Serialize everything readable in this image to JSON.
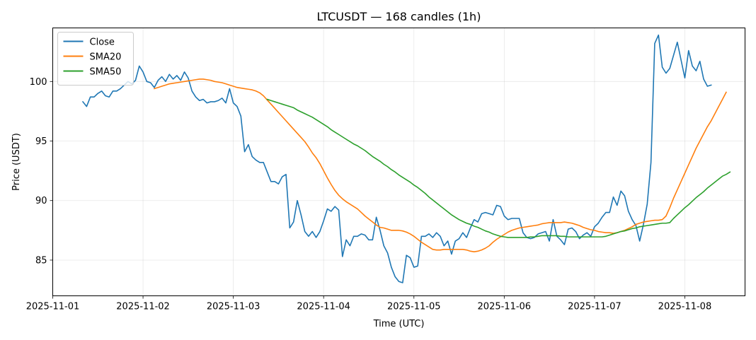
{
  "chart_data": {
    "type": "line",
    "title": "LTCUSDT — 168 candles (1h)",
    "xlabel": "Time (UTC)",
    "ylabel": "Price (USDT)",
    "x_ticks": [
      "2025-11-01",
      "2025-11-02",
      "2025-11-03",
      "2025-11-04",
      "2025-11-05",
      "2025-11-06",
      "2025-11-07",
      "2025-11-08"
    ],
    "y_ticks": [
      85,
      90,
      95,
      100
    ],
    "xlim": [
      "2025-11-01 00:00",
      "2025-11-08 16:00"
    ],
    "ylim": [
      82,
      104.5
    ],
    "grid": true,
    "legend_position": "top-left",
    "series": [
      {
        "name": "Close",
        "color": "#1f77b4",
        "start": "2025-11-01 08:00",
        "step_hours": 1,
        "values": [
          98.3,
          97.9,
          98.7,
          98.7,
          99.0,
          99.2,
          98.8,
          98.7,
          99.2,
          99.2,
          99.4,
          99.7,
          100.0,
          99.8,
          100.1,
          101.3,
          100.8,
          100.0,
          99.9,
          99.5,
          100.1,
          100.4,
          100.0,
          100.6,
          100.2,
          100.5,
          100.1,
          100.8,
          100.3,
          99.2,
          98.7,
          98.4,
          98.5,
          98.2,
          98.3,
          98.3,
          98.4,
          98.6,
          98.2,
          99.4,
          98.2,
          97.9,
          97.1,
          94.1,
          94.7,
          93.7,
          93.4,
          93.2,
          93.2,
          92.4,
          91.6,
          91.6,
          91.4,
          92.0,
          92.2,
          87.7,
          88.2,
          90.0,
          88.8,
          87.4,
          87.0,
          87.4,
          86.9,
          87.4,
          88.3,
          89.3,
          89.1,
          89.5,
          89.2,
          85.3,
          86.7,
          86.2,
          87.0,
          87.0,
          87.2,
          87.1,
          86.7,
          86.7,
          88.6,
          87.5,
          86.2,
          85.6,
          84.4,
          83.6,
          83.2,
          83.1,
          85.4,
          85.2,
          84.4,
          84.5,
          87.0,
          87.0,
          87.2,
          86.9,
          87.3,
          87.0,
          86.2,
          86.6,
          85.5,
          86.6,
          86.8,
          87.3,
          86.9,
          87.7,
          88.4,
          88.2,
          88.9,
          89.0,
          88.9,
          88.8,
          89.6,
          89.5,
          88.7,
          88.4,
          88.5,
          88.5,
          88.5,
          87.3,
          86.9,
          86.8,
          86.9,
          87.2,
          87.3,
          87.4,
          86.6,
          88.4,
          87.0,
          86.7,
          86.3,
          87.6,
          87.7,
          87.4,
          86.8,
          87.1,
          87.3,
          87.0,
          87.8,
          88.1,
          88.6,
          89.0,
          89.0,
          90.3,
          89.6,
          90.8,
          90.4,
          89.1,
          88.4,
          87.9,
          86.6,
          88.0,
          89.7,
          93.2,
          103.2,
          103.9,
          101.2,
          100.7,
          101.1,
          102.2,
          103.3,
          101.8,
          100.3,
          102.6,
          101.3,
          100.9,
          101.7,
          100.2,
          99.6,
          99.7
        ]
      },
      {
        "name": "SMA20",
        "color": "#ff7f0e",
        "start": "2025-11-02 03:00",
        "step_hours": 1,
        "values": [
          99.4,
          99.5,
          99.6,
          99.7,
          99.8,
          99.85,
          99.9,
          99.95,
          100.0,
          100.05,
          100.1,
          100.15,
          100.2,
          100.2,
          100.15,
          100.1,
          100.0,
          99.95,
          99.9,
          99.8,
          99.7,
          99.6,
          99.5,
          99.45,
          99.4,
          99.35,
          99.3,
          99.2,
          99.05,
          98.8,
          98.45,
          98.1,
          97.75,
          97.4,
          97.05,
          96.7,
          96.35,
          96.0,
          95.65,
          95.3,
          94.95,
          94.5,
          94.0,
          93.6,
          93.1,
          92.5,
          91.9,
          91.35,
          90.85,
          90.45,
          90.15,
          89.9,
          89.7,
          89.5,
          89.3,
          89.0,
          88.7,
          88.45,
          88.2,
          87.95,
          87.75,
          87.7,
          87.6,
          87.5,
          87.5,
          87.5,
          87.45,
          87.35,
          87.2,
          87.0,
          86.75,
          86.5,
          86.3,
          86.1,
          85.9,
          85.85,
          85.85,
          85.9,
          85.9,
          85.9,
          85.9,
          85.9,
          85.9,
          85.85,
          85.75,
          85.7,
          85.75,
          85.85,
          86.0,
          86.2,
          86.5,
          86.75,
          86.95,
          87.15,
          87.35,
          87.5,
          87.6,
          87.7,
          87.75,
          87.8,
          87.85,
          87.9,
          87.95,
          88.05,
          88.1,
          88.15,
          88.15,
          88.15,
          88.15,
          88.2,
          88.15,
          88.1,
          88.0,
          87.9,
          87.75,
          87.65,
          87.55,
          87.5,
          87.4,
          87.35,
          87.3,
          87.3,
          87.25,
          87.3,
          87.4,
          87.5,
          87.65,
          87.8,
          88.0,
          88.1,
          88.2,
          88.25,
          88.3,
          88.35,
          88.35,
          88.4,
          88.7,
          89.4,
          90.2,
          90.9,
          91.6,
          92.3,
          93.0,
          93.7,
          94.4,
          95.0,
          95.6,
          96.2,
          96.7,
          97.3,
          97.9,
          98.5,
          99.1
        ]
      },
      {
        "name": "SMA50",
        "color": "#2ca02c",
        "start": "2025-11-03 09:00",
        "step_hours": 1,
        "values": [
          98.5,
          98.4,
          98.3,
          98.2,
          98.1,
          98.0,
          97.9,
          97.8,
          97.6,
          97.45,
          97.3,
          97.15,
          97.0,
          96.8,
          96.6,
          96.4,
          96.2,
          95.95,
          95.75,
          95.55,
          95.35,
          95.15,
          94.95,
          94.75,
          94.6,
          94.4,
          94.2,
          93.95,
          93.7,
          93.5,
          93.3,
          93.05,
          92.85,
          92.6,
          92.4,
          92.15,
          91.95,
          91.75,
          91.55,
          91.3,
          91.1,
          90.85,
          90.6,
          90.3,
          90.05,
          89.8,
          89.55,
          89.3,
          89.05,
          88.8,
          88.6,
          88.4,
          88.25,
          88.1,
          88.0,
          87.85,
          87.75,
          87.6,
          87.45,
          87.35,
          87.2,
          87.1,
          87.0,
          86.95,
          86.9,
          86.9,
          86.9,
          86.9,
          86.9,
          86.9,
          86.95,
          86.95,
          87.0,
          87.05,
          87.05,
          87.05,
          87.05,
          87.05,
          87.0,
          87.0,
          86.95,
          86.95,
          86.95,
          86.95,
          86.95,
          86.95,
          86.95,
          86.95,
          86.95,
          86.95,
          87.0,
          87.1,
          87.2,
          87.3,
          87.4,
          87.45,
          87.55,
          87.65,
          87.7,
          87.8,
          87.85,
          87.9,
          87.95,
          88.0,
          88.05,
          88.1,
          88.1,
          88.15,
          88.5,
          88.8,
          89.1,
          89.4,
          89.65,
          89.95,
          90.25,
          90.5,
          90.75,
          91.05,
          91.3,
          91.55,
          91.8,
          92.05,
          92.2,
          92.4
        ]
      }
    ]
  }
}
